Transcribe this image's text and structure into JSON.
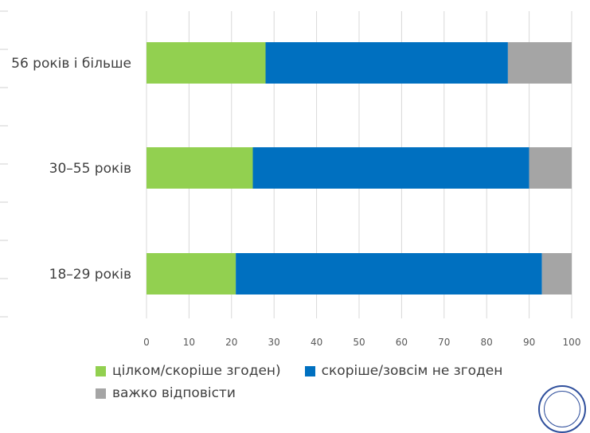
{
  "chart_data": {
    "type": "bar",
    "orientation": "horizontal",
    "stacked": true,
    "categories": [
      "56 років і більше",
      "30–55 років",
      "18–29 років"
    ],
    "series": [
      {
        "name": "цілком/скоріше згоден)",
        "color": "#92d050",
        "values": [
          28,
          25,
          21
        ]
      },
      {
        "name": "скоріше/зовсім не згоден",
        "color": "#0070c0",
        "values": [
          57,
          65,
          72
        ]
      },
      {
        "name": "важко відповісти",
        "color": "#a5a5a5",
        "values": [
          15,
          10,
          7
        ]
      }
    ],
    "xlim": [
      0,
      100
    ],
    "xticks": [
      0,
      10,
      20,
      30,
      40,
      50,
      60,
      70,
      80,
      90,
      100
    ],
    "grid": true,
    "legend_position": "bottom"
  }
}
